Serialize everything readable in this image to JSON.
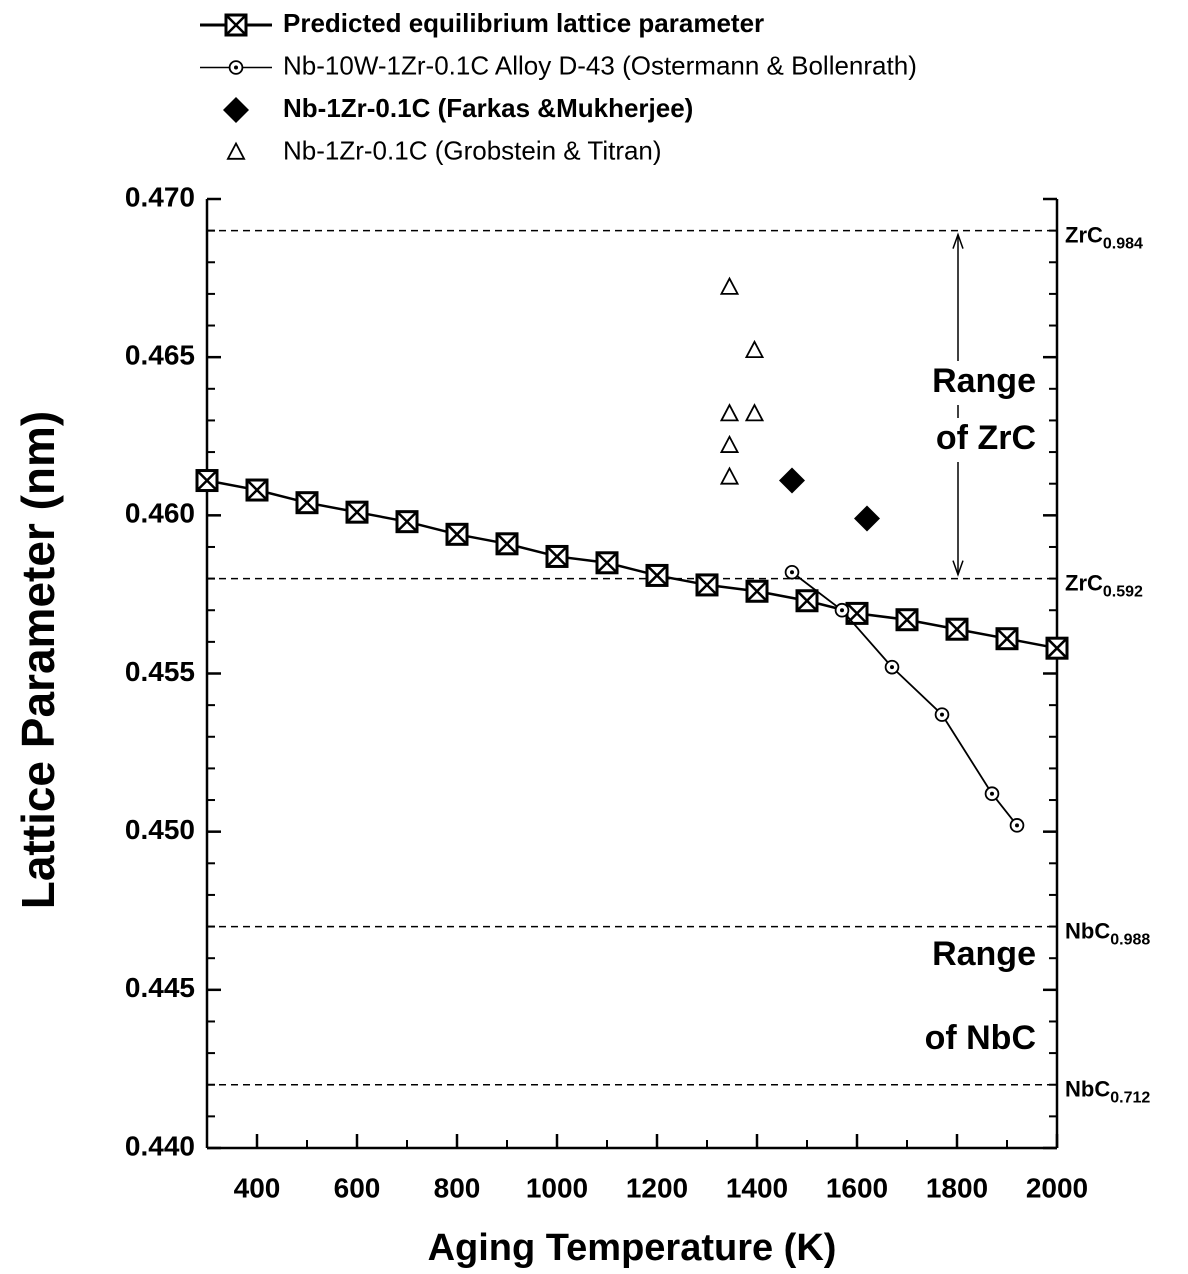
{
  "chart_data": {
    "type": "line",
    "x_label": "Aging Temperature (K)",
    "y_label": "Lattice Parameter (nm)",
    "xlim": [
      300,
      2000
    ],
    "xticks": [
      400,
      600,
      800,
      1000,
      1200,
      1400,
      1600,
      1800,
      2000
    ],
    "ylim": [
      0.44,
      0.47
    ],
    "yticks": [
      {
        "value": 0.44,
        "label": "0.440"
      },
      0.445,
      {
        "value": 0.45,
        "label": "0.450"
      },
      0.455,
      {
        "value": 0.46,
        "label": "0.460"
      },
      0.465,
      {
        "value": 0.47,
        "label": "0.470"
      }
    ],
    "series": [
      {
        "name": "Predicted equilibrium lattice parameter",
        "color": "#000000",
        "marker": "square-x",
        "line": true,
        "x": [
          300,
          400,
          500,
          600,
          700,
          800,
          900,
          1000,
          1100,
          1200,
          1300,
          1400,
          1500,
          1600,
          1700,
          1800,
          1900,
          2000
        ],
        "values": [
          0.4611,
          0.4608,
          0.4604,
          0.4601,
          0.4598,
          0.4594,
          0.4591,
          0.4587,
          0.4585,
          0.4581,
          0.4578,
          0.4576,
          0.4573,
          0.4569,
          0.4567,
          0.4564,
          0.4561,
          0.4558
        ]
      },
      {
        "name": "Nb-10W-1Zr-0.1C Alloy D-43 (Ostermann & Bollenrath)",
        "color": "#000000",
        "marker": "circle-dot",
        "line": true,
        "x": [
          1470,
          1570,
          1670,
          1770,
          1870,
          1920
        ],
        "values": [
          0.4582,
          0.457,
          0.4552,
          0.4537,
          0.4512,
          0.4502
        ]
      },
      {
        "name": "Nb-1Zr-0.1C (Farkas &Mukherjee)",
        "color": "#000000",
        "marker": "diamond",
        "line": false,
        "x": [
          1470,
          1620
        ],
        "values": [
          0.4611,
          0.4599
        ]
      },
      {
        "name": "Nb-1Zr-0.1C (Grobstein & Titran)",
        "color": "#000000",
        "marker": "triangle",
        "line": false,
        "x": [
          1345,
          1345,
          1345,
          1345,
          1395,
          1395
        ],
        "values": [
          0.4672,
          0.4632,
          0.4622,
          0.4612,
          0.4652,
          0.4632
        ]
      }
    ],
    "reference_lines": [
      {
        "value": 0.469,
        "label": "ZrC",
        "label_sub": "0.984"
      },
      {
        "value": 0.458,
        "label": "ZrC",
        "label_sub": "0.592"
      },
      {
        "value": 0.447,
        "label": "NbC",
        "label_sub": "0.988"
      },
      {
        "value": 0.442,
        "label": "NbC",
        "label_sub": "0.712"
      }
    ],
    "annotations": [
      [
        "Range",
        "of ZrC"
      ],
      [
        "Range",
        "of NbC"
      ]
    ]
  }
}
